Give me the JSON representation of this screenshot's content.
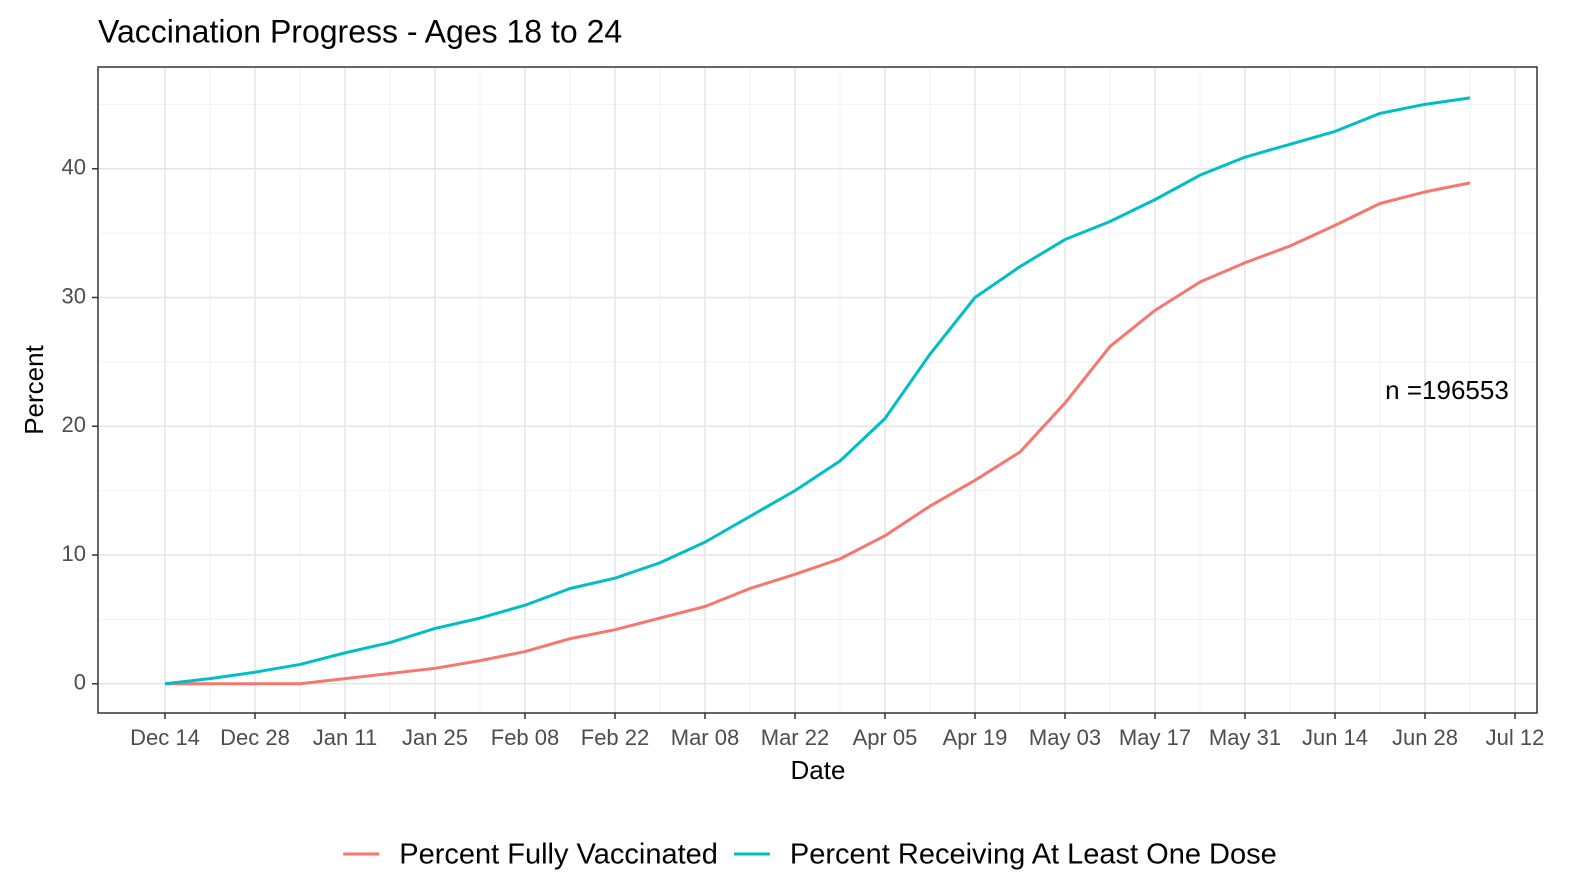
{
  "chart_data": {
    "type": "line",
    "title": "Vaccination Progress - Ages 18 to 24",
    "x_label": "Date",
    "y_label": "Percent",
    "annotation": "n =196553",
    "x": [
      "Dec 14",
      "Dec 21",
      "Dec 28",
      "Jan 04",
      "Jan 11",
      "Jan 18",
      "Jan 25",
      "Feb 01",
      "Feb 08",
      "Feb 15",
      "Feb 22",
      "Mar 01",
      "Mar 08",
      "Mar 15",
      "Mar 22",
      "Mar 29",
      "Apr 05",
      "Apr 12",
      "Apr 19",
      "Apr 26",
      "May 03",
      "May 10",
      "May 17",
      "May 24",
      "May 31",
      "Jun 07",
      "Jun 14",
      "Jun 21",
      "Jun 28",
      "Jul 05",
      "Jul 12"
    ],
    "xticks": [
      "Dec 14",
      "Dec 28",
      "Jan 11",
      "Jan 25",
      "Feb 08",
      "Feb 22",
      "Mar 08",
      "Mar 22",
      "Apr 05",
      "Apr 19",
      "May 03",
      "May 17",
      "May 31",
      "Jun 14",
      "Jun 28",
      "Jul 12"
    ],
    "series": [
      {
        "name": "Percent Fully Vaccinated",
        "color": "#F8766D",
        "values": [
          0,
          0,
          0,
          0,
          0.4,
          0.8,
          1.2,
          1.8,
          2.5,
          3.5,
          4.2,
          5.1,
          6.0,
          7.4,
          8.5,
          9.7,
          11.5,
          13.8,
          15.8,
          18.0,
          21.8,
          26.2,
          29.0,
          31.2,
          32.7,
          34.0,
          35.6,
          37.3,
          38.2,
          38.9,
          null
        ]
      },
      {
        "name": "Percent Receiving At Least One Dose",
        "color": "#00BFC4",
        "values": [
          0,
          0.4,
          0.9,
          1.5,
          2.4,
          3.2,
          4.3,
          5.1,
          6.1,
          7.4,
          8.2,
          9.4,
          11.0,
          13.0,
          15.0,
          17.3,
          20.6,
          25.6,
          30.0,
          32.4,
          34.5,
          35.9,
          37.6,
          39.5,
          40.9,
          41.9,
          42.9,
          44.3,
          45.0,
          45.5,
          null
        ]
      }
    ],
    "ylim": [
      -2.27,
      47.9
    ],
    "yticks": [
      0,
      10,
      20,
      30,
      40
    ],
    "grid": true,
    "legend": "bottom"
  }
}
